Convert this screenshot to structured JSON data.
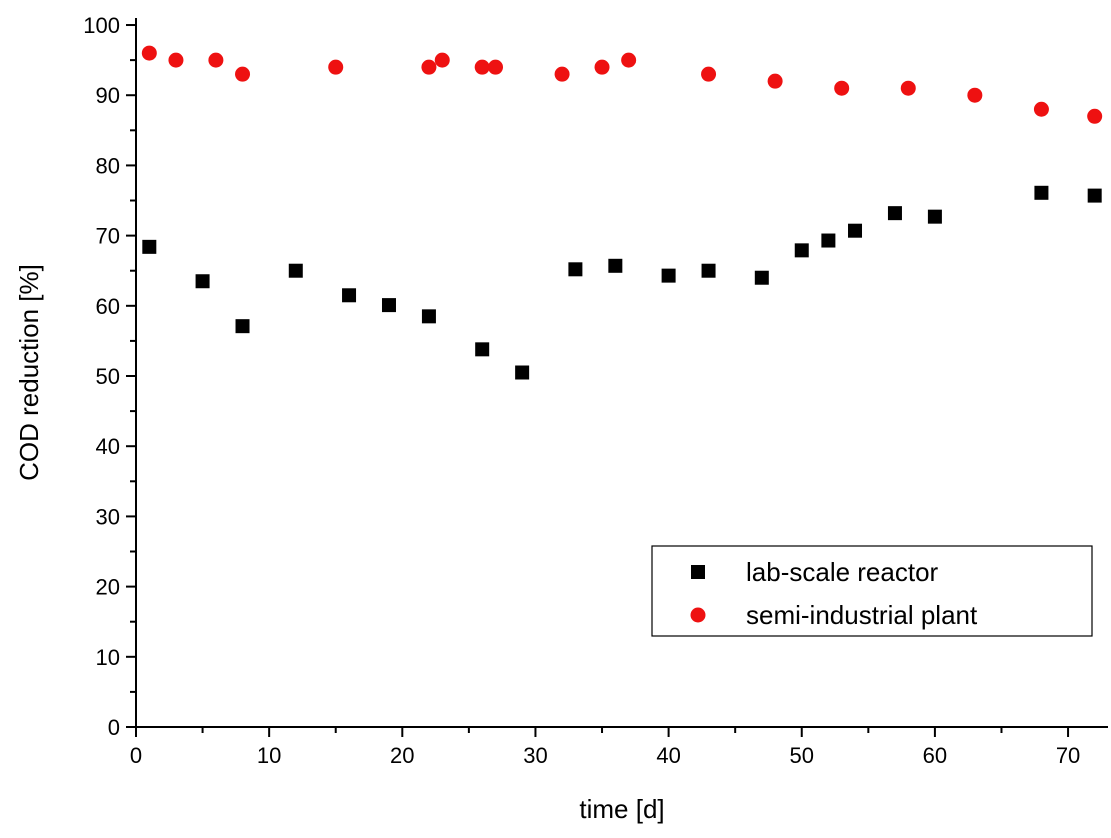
{
  "chart_data": {
    "type": "scatter",
    "xlabel": "time [d]",
    "ylabel": "COD reduction [%]",
    "xlim": [
      0,
      73
    ],
    "ylim": [
      0,
      101
    ],
    "xticks": [
      0,
      10,
      20,
      30,
      40,
      50,
      60,
      70
    ],
    "yticks": [
      0,
      10,
      20,
      30,
      40,
      50,
      60,
      70,
      80,
      90,
      100
    ],
    "grid": false,
    "legend_position": "lower-right",
    "series": [
      {
        "name": "lab-scale reactor",
        "marker": "square",
        "color": "#000000",
        "points": [
          [
            1,
            68.4
          ],
          [
            5,
            63.5
          ],
          [
            8,
            57.1
          ],
          [
            12,
            65.0
          ],
          [
            16,
            61.5
          ],
          [
            19,
            60.1
          ],
          [
            22,
            58.5
          ],
          [
            26,
            53.8
          ],
          [
            29,
            50.5
          ],
          [
            33,
            65.2
          ],
          [
            36,
            65.7
          ],
          [
            40,
            64.3
          ],
          [
            43,
            65.0
          ],
          [
            47,
            64.0
          ],
          [
            50,
            67.9
          ],
          [
            52,
            69.3
          ],
          [
            54,
            70.7
          ],
          [
            57,
            73.2
          ],
          [
            60,
            72.7
          ],
          [
            68,
            76.1
          ],
          [
            72,
            75.7
          ]
        ]
      },
      {
        "name": "semi-industrial plant",
        "marker": "circle",
        "color": "#ee1111",
        "points": [
          [
            1,
            96
          ],
          [
            3,
            95
          ],
          [
            6,
            95
          ],
          [
            8,
            93
          ],
          [
            15,
            94
          ],
          [
            22,
            94
          ],
          [
            23,
            95
          ],
          [
            26,
            94
          ],
          [
            27,
            94
          ],
          [
            32,
            93
          ],
          [
            35,
            94
          ],
          [
            37,
            95
          ],
          [
            43,
            93
          ],
          [
            48,
            92
          ],
          [
            53,
            91
          ],
          [
            58,
            91
          ],
          [
            63,
            90
          ],
          [
            68,
            88
          ],
          [
            72,
            87
          ]
        ]
      }
    ]
  }
}
